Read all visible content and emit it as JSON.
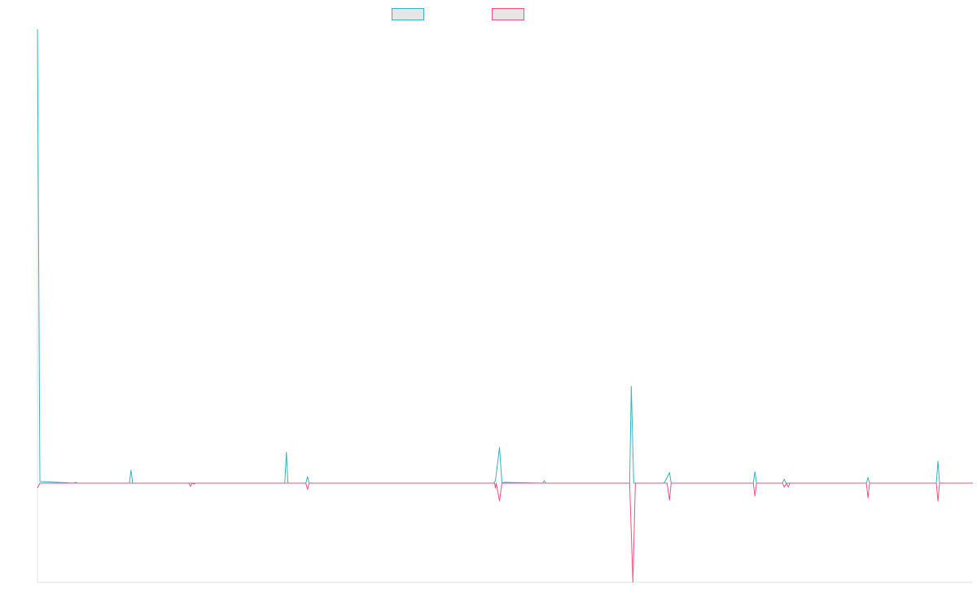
{
  "chart_data": {
    "type": "line",
    "title": "",
    "xlabel": "",
    "ylabel": "",
    "legend": "top-center",
    "grid": false,
    "ylim": [
      -122,
      558
    ],
    "xlim": [
      0,
      1150
    ],
    "series": [
      {
        "color": "#36b3c1",
        "fill": "#e6e6e6",
        "points": [
          [
            0,
            558
          ],
          [
            3,
            2
          ],
          [
            45,
            0
          ],
          [
            47,
            1
          ],
          [
            49,
            0
          ],
          [
            113,
            0
          ],
          [
            115,
            16
          ],
          [
            117,
            0
          ],
          [
            304,
            0
          ],
          [
            306,
            38
          ],
          [
            308,
            0
          ],
          [
            330,
            0
          ],
          [
            332,
            8
          ],
          [
            334,
            0
          ],
          [
            561,
            0
          ],
          [
            563,
            3
          ],
          [
            568,
            44
          ],
          [
            571,
            0
          ],
          [
            574,
            1
          ],
          [
            621,
            0
          ],
          [
            623,
            3
          ],
          [
            625,
            0
          ],
          [
            728,
            0
          ],
          [
            730,
            119
          ],
          [
            733,
            0
          ],
          [
            770,
            0
          ],
          [
            772,
            3
          ],
          [
            777,
            13
          ],
          [
            779,
            0
          ],
          [
            880,
            0
          ],
          [
            882,
            14
          ],
          [
            884,
            0
          ],
          [
            916,
            0
          ],
          [
            918,
            5
          ],
          [
            920,
            0
          ],
          [
            1019,
            0
          ],
          [
            1021,
            7
          ],
          [
            1023,
            0
          ],
          [
            1105,
            0
          ],
          [
            1107,
            27
          ],
          [
            1109,
            0
          ],
          [
            1150,
            0
          ]
        ]
      },
      {
        "color": "#f0537f",
        "fill": "#e6e6e6",
        "points": [
          [
            0,
            -6
          ],
          [
            3,
            0
          ],
          [
            186,
            0
          ],
          [
            188,
            -4
          ],
          [
            190,
            0
          ],
          [
            192,
            -1
          ],
          [
            194,
            0
          ],
          [
            330,
            0
          ],
          [
            332,
            -8
          ],
          [
            334,
            0
          ],
          [
            562,
            0
          ],
          [
            563,
            -6
          ],
          [
            564,
            0
          ],
          [
            568,
            -22
          ],
          [
            571,
            0
          ],
          [
            728,
            0
          ],
          [
            732,
            -122
          ],
          [
            735,
            0
          ],
          [
            774,
            0
          ],
          [
            777,
            -21
          ],
          [
            779,
            0
          ],
          [
            880,
            0
          ],
          [
            882,
            -16
          ],
          [
            884,
            0
          ],
          [
            916,
            0
          ],
          [
            918,
            -5
          ],
          [
            921,
            0
          ],
          [
            923,
            -5
          ],
          [
            925,
            0
          ],
          [
            1019,
            0
          ],
          [
            1021,
            -18
          ],
          [
            1023,
            0
          ],
          [
            1105,
            0
          ],
          [
            1107,
            -22
          ],
          [
            1109,
            0
          ],
          [
            1150,
            0
          ]
        ]
      }
    ]
  }
}
